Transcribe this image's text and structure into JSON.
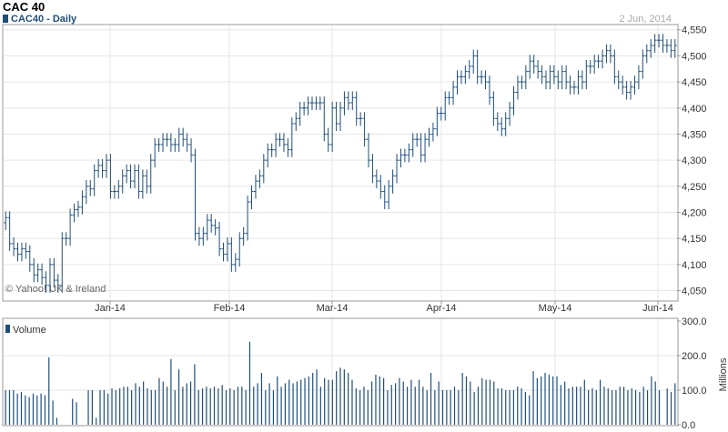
{
  "header": {
    "title": "CAC 40",
    "legend_label": "CAC40 - Daily",
    "date": "2 Jun, 2014"
  },
  "watermark": "© Yahoo! UK & Ireland",
  "colors": {
    "series": "#1f4e79",
    "grid": "#e6e6e6",
    "axis": "#999999"
  },
  "chart_data": [
    {
      "type": "ohlc",
      "title": "CAC 40",
      "series_name": "CAC40 - Daily",
      "x_labels": [
        "Jan-14",
        "Feb-14",
        "Mar-14",
        "Apr-14",
        "May-14",
        "Jun-14"
      ],
      "y_ticks": [
        "4,050",
        "4,100",
        "4,150",
        "4,200",
        "4,250",
        "4,300",
        "4,350",
        "4,400",
        "4,450",
        "4,500",
        "4,550"
      ],
      "ylim": [
        4050,
        4550
      ],
      "close": [
        4190,
        4140,
        4130,
        4120,
        4130,
        4125,
        4100,
        4080,
        4090,
        4075,
        4060,
        4100,
        4070,
        4060,
        4150,
        4150,
        4195,
        4205,
        4210,
        4230,
        4250,
        4245,
        4280,
        4290,
        4280,
        4300,
        4240,
        4240,
        4250,
        4270,
        4280,
        4260,
        4280,
        4240,
        4270,
        4250,
        4300,
        4330,
        4330,
        4340,
        4340,
        4330,
        4330,
        4350,
        4340,
        4330,
        4310,
        4160,
        4150,
        4160,
        4185,
        4175,
        4170,
        4130,
        4120,
        4140,
        4100,
        4110,
        4150,
        4160,
        4220,
        4240,
        4260,
        4270,
        4300,
        4320,
        4320,
        4340,
        4340,
        4330,
        4320,
        4370,
        4380,
        4400,
        4400,
        4410,
        4410,
        4410,
        4410,
        4350,
        4330,
        4400,
        4370,
        4400,
        4420,
        4410,
        4420,
        4380,
        4380,
        4340,
        4300,
        4270,
        4260,
        4240,
        4220,
        4250,
        4270,
        4300,
        4310,
        4310,
        4320,
        4340,
        4340,
        4310,
        4340,
        4350,
        4360,
        4390,
        4390,
        4420,
        4420,
        4440,
        4460,
        4460,
        4470,
        4480,
        4500,
        4460,
        4460,
        4450,
        4420,
        4380,
        4370,
        4360,
        4380,
        4400,
        4430,
        4450,
        4450,
        4470,
        4490,
        4480,
        4470,
        4460,
        4450,
        4470,
        4460,
        4450,
        4470,
        4450,
        4440,
        4440,
        4460,
        4450,
        4480,
        4480,
        4490,
        4490,
        4500,
        4510,
        4500,
        4460,
        4450,
        4440,
        4430,
        4440,
        4450,
        4470,
        4500,
        4510,
        4520,
        4530,
        4530,
        4520,
        4520,
        4510,
        4520
      ]
    },
    {
      "type": "bar",
      "series_name": "Volume",
      "ylabel": "Millions",
      "y_ticks": [
        "0.0",
        "100.0",
        "200.0",
        "300.0"
      ],
      "ylim": [
        0,
        300
      ],
      "values": [
        100,
        100,
        100,
        90,
        95,
        85,
        80,
        90,
        85,
        90,
        85,
        195,
        70,
        20,
        0,
        0,
        0,
        75,
        65,
        0,
        0,
        100,
        100,
        20,
        100,
        100,
        90,
        105,
        100,
        105,
        110,
        110,
        100,
        120,
        110,
        125,
        105,
        100,
        100,
        135,
        125,
        110,
        190,
        100,
        160,
        110,
        120,
        125,
        175,
        100,
        105,
        110,
        105,
        110,
        105,
        115,
        100,
        105,
        100,
        110,
        110,
        100,
        240,
        110,
        120,
        150,
        100,
        120,
        100,
        140,
        110,
        120,
        130,
        120,
        125,
        130,
        135,
        140,
        150,
        160,
        110,
        135,
        130,
        130,
        155,
        165,
        160,
        150,
        130,
        105,
        100,
        110,
        100,
        125,
        145,
        140,
        135,
        100,
        115,
        120,
        135,
        125,
        110,
        130,
        110,
        130,
        110,
        100,
        150,
        100,
        125,
        100,
        100,
        100,
        110,
        100,
        150,
        140,
        125,
        95,
        110,
        135,
        130,
        130,
        125,
        105,
        105,
        100,
        100,
        100,
        110,
        105,
        95,
        85,
        155,
        135,
        140,
        150,
        145,
        140,
        140,
        115,
        125,
        105,
        110,
        110,
        110,
        130,
        100,
        105,
        100,
        130,
        110,
        105,
        100,
        100,
        110,
        110,
        100,
        105,
        100,
        95,
        110,
        100,
        140,
        125,
        100,
        0,
        105,
        95,
        120
      ]
    }
  ]
}
